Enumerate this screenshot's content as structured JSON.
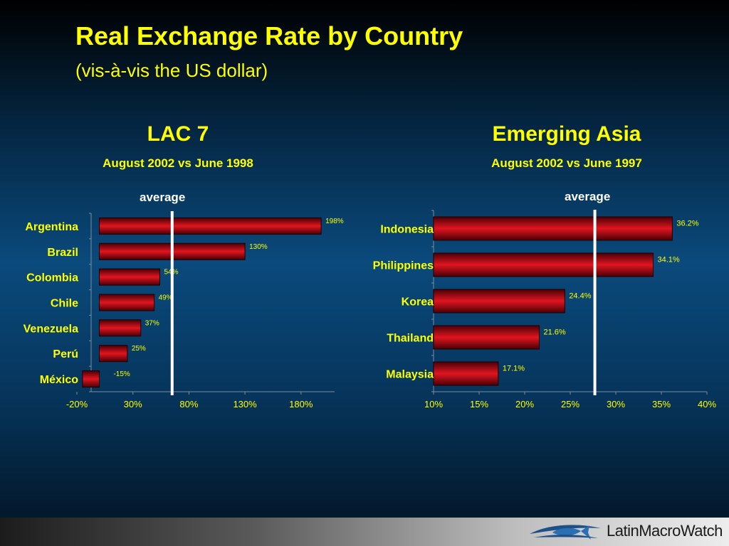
{
  "title": "Real Exchange Rate by Country",
  "subtitle": "(vis-à-vis the US dollar)",
  "colors": {
    "accent": "#ffff00",
    "bar": "#d0121c",
    "average_line": "#ffffff"
  },
  "chart_data": [
    {
      "type": "bar",
      "orientation": "horizontal",
      "title": "LAC 7",
      "subtitle": "August 2002 vs June 1998",
      "average_label": "average",
      "average_value": 65,
      "categories": [
        "Argentina",
        "Brazil",
        "Colombia",
        "Chile",
        "Venezuela",
        "Perú",
        "México"
      ],
      "values": [
        198,
        130,
        54,
        49,
        37,
        25,
        -15
      ],
      "value_labels": [
        "198%",
        "130%",
        "54%",
        "49%",
        "37%",
        "25%",
        "-15%"
      ],
      "xlim": [
        -20,
        210
      ],
      "ticks": [
        -20,
        30,
        80,
        130,
        180
      ],
      "tick_labels": [
        "-20%",
        "30%",
        "80%",
        "130%",
        "180%"
      ],
      "grid": false,
      "legend": "none"
    },
    {
      "type": "bar",
      "orientation": "horizontal",
      "title": "Emerging Asia",
      "subtitle": "August 2002 vs June 1997",
      "average_label": "average",
      "average_value": 27.7,
      "categories": [
        "Indonesia",
        "Philippines",
        "Korea",
        "Thailand",
        "Malaysia"
      ],
      "values": [
        36.2,
        34.1,
        24.4,
        21.6,
        17.1
      ],
      "value_labels": [
        "36.2%",
        "34.1%",
        "24.4%",
        "21.6%",
        "17.1%"
      ],
      "xlim": [
        10,
        40
      ],
      "ticks": [
        10,
        15,
        20,
        25,
        30,
        35,
        40
      ],
      "tick_labels": [
        "10%",
        "15%",
        "20%",
        "25%",
        "30%",
        "35%",
        "40%"
      ],
      "grid": false,
      "legend": "none"
    }
  ],
  "footer": {
    "brand": "LatinMacroWatch",
    "logo_icon": "fish-swoosh-icon"
  }
}
